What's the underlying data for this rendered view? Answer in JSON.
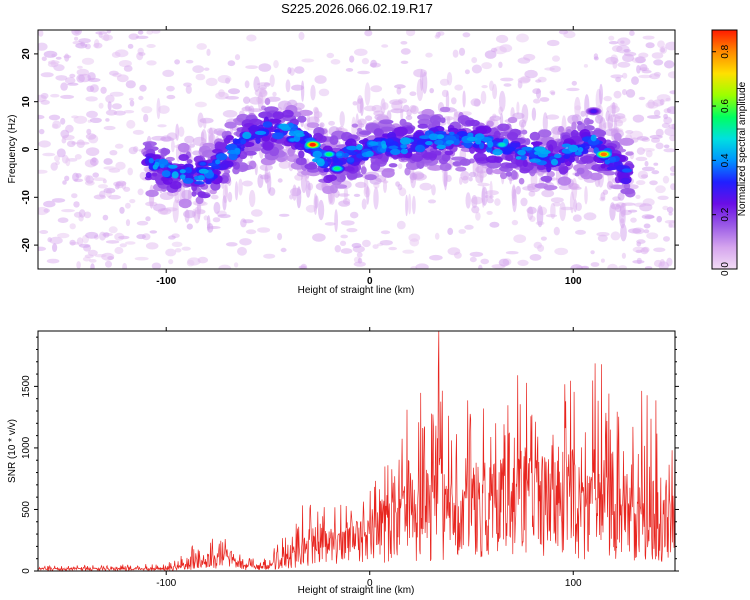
{
  "title": "S225.2026.066.02.19.R17",
  "colors": {
    "snr_line": "#e8251f",
    "colormap": [
      "#f2dcf5",
      "#d5a5ee",
      "#9a5ae6",
      "#6a0ee6",
      "#2020ff",
      "#0095ff",
      "#00e0e0",
      "#00ff60",
      "#9cff00",
      "#ffe000",
      "#ff8a00",
      "#ff1a00"
    ]
  },
  "chart_data": [
    {
      "type": "heatmap",
      "title": "",
      "xlabel": "Height of straight line (km)",
      "ylabel": "Frequency (Hz)",
      "xlim": [
        -163,
        150
      ],
      "ylim": [
        -25,
        25
      ],
      "x_ticks": [
        {
          "value": -100,
          "label": "-100"
        },
        {
          "value": 0,
          "label": "0"
        },
        {
          "value": 100,
          "label": "100"
        }
      ],
      "y_ticks": [
        {
          "value": 20,
          "label": "20"
        },
        {
          "value": 10,
          "label": "10"
        },
        {
          "value": 0,
          "label": "0"
        },
        {
          "value": -10,
          "label": "-10"
        },
        {
          "value": -20,
          "label": "-20"
        }
      ],
      "colorbar": {
        "label": "Normalized spectral amplitude",
        "range": [
          0,
          0.88
        ],
        "ticks": [
          {
            "value": 0.0,
            "label": "0.0"
          },
          {
            "value": 0.2,
            "label": "0.2"
          },
          {
            "value": 0.4,
            "label": "0.4"
          },
          {
            "value": 0.6,
            "label": "0.6"
          },
          {
            "value": 0.8,
            "label": "0.8"
          }
        ]
      },
      "ridge": {
        "description": "frequency of peak spectral energy vs height",
        "x": [
          -108,
          -100,
          -90,
          -80,
          -70,
          -60,
          -50,
          -40,
          -30,
          -20,
          -10,
          0,
          10,
          20,
          30,
          40,
          50,
          60,
          70,
          80,
          90,
          100,
          105,
          110,
          115,
          120,
          125
        ],
        "y": [
          -3,
          -4,
          -5,
          -6,
          -1,
          2,
          4,
          4,
          1,
          -3,
          -1,
          0,
          1,
          1,
          2,
          2,
          2,
          1,
          0,
          -1,
          -2,
          0,
          1,
          1,
          -1,
          -3,
          -5
        ]
      },
      "hotspots": [
        {
          "x": -28,
          "y": 1,
          "amplitude": 0.88
        },
        {
          "x": 115,
          "y": -1,
          "amplitude": 0.82
        },
        {
          "x": -20,
          "y": -1,
          "amplitude": 0.55
        },
        {
          "x": -16,
          "y": -4,
          "amplitude": 0.55
        },
        {
          "x": 65,
          "y": 1,
          "amplitude": 0.5
        },
        {
          "x": -38,
          "y": 2,
          "amplitude": 0.4
        },
        {
          "x": -82,
          "y": -3,
          "amplitude": 0.35
        },
        {
          "x": 110,
          "y": 8,
          "amplitude": 0.28
        }
      ]
    },
    {
      "type": "line",
      "title": "",
      "xlabel": "Height of straight line (km)",
      "ylabel": "SNR (10 * v/v)",
      "xlim": [
        -163,
        150
      ],
      "ylim": [
        0,
        1950
      ],
      "x_ticks": [
        {
          "value": -100,
          "label": "-100"
        },
        {
          "value": 0,
          "label": "0"
        },
        {
          "value": 100,
          "label": "100"
        }
      ],
      "y_ticks": [
        {
          "value": 0,
          "label": "0"
        },
        {
          "value": 500,
          "label": "500"
        },
        {
          "value": 1000,
          "label": "1000"
        },
        {
          "value": 1500,
          "label": "1500"
        }
      ],
      "envelope": {
        "description": "approximate local mean and max of the noisy SNR trace",
        "x": [
          -163,
          -100,
          -90,
          -80,
          -70,
          -60,
          -50,
          -40,
          -30,
          -20,
          -10,
          0,
          10,
          20,
          30,
          40,
          50,
          60,
          70,
          80,
          90,
          100,
          110,
          120,
          130,
          140,
          150
        ],
        "mean": [
          15,
          20,
          40,
          110,
          90,
          40,
          30,
          110,
          230,
          250,
          270,
          310,
          430,
          510,
          540,
          560,
          590,
          620,
          650,
          700,
          620,
          640,
          580,
          560,
          480,
          400,
          420
        ],
        "max": [
          40,
          60,
          160,
          370,
          280,
          110,
          100,
          390,
          600,
          580,
          560,
          650,
          1200,
          1350,
          1950,
          1450,
          1580,
          1500,
          1660,
          1500,
          1450,
          1750,
          1930,
          1520,
          1400,
          1700,
          1300
        ]
      },
      "peak": {
        "x": 34,
        "y": 1950
      }
    }
  ]
}
